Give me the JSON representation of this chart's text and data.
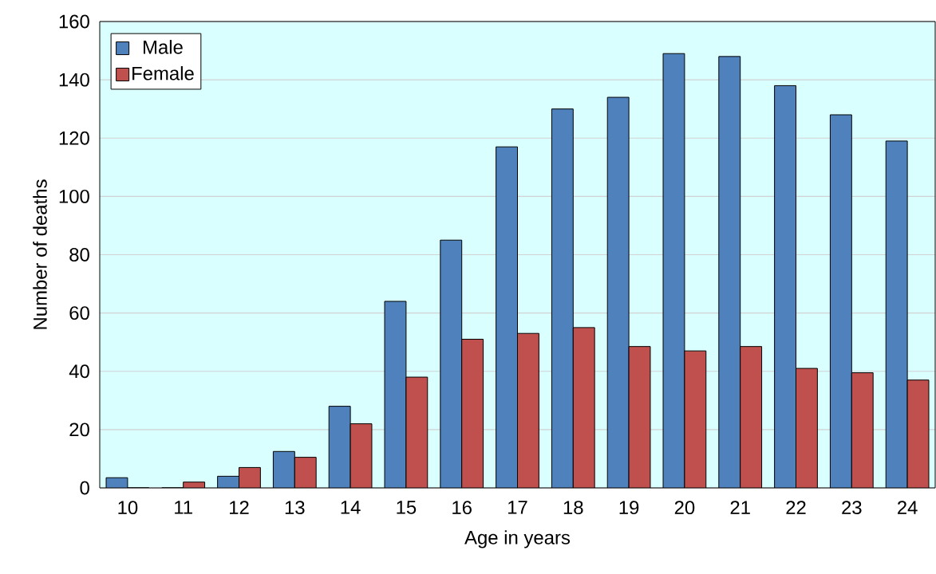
{
  "chart_data": {
    "type": "bar",
    "xlabel": "Age in years",
    "ylabel": "Number of deaths",
    "categories": [
      "10",
      "11",
      "12",
      "13",
      "14",
      "15",
      "16",
      "17",
      "18",
      "19",
      "20",
      "21",
      "22",
      "23",
      "24"
    ],
    "series": [
      {
        "name": "Male",
        "color": "#4f81bd",
        "values": [
          3.5,
          0,
          4,
          12.5,
          28,
          64,
          85,
          117,
          130,
          134,
          149,
          148,
          138,
          128,
          119
        ]
      },
      {
        "name": "Female",
        "color": "#c0504d",
        "values": [
          0,
          2,
          7,
          10.5,
          22,
          38,
          51,
          53,
          55,
          48.5,
          47,
          48.5,
          41,
          39.5,
          37
        ]
      }
    ],
    "ylim": [
      0,
      160
    ],
    "yticks": [
      0,
      20,
      40,
      60,
      80,
      100,
      120,
      140,
      160
    ],
    "grid": "y",
    "legend": "top left"
  }
}
